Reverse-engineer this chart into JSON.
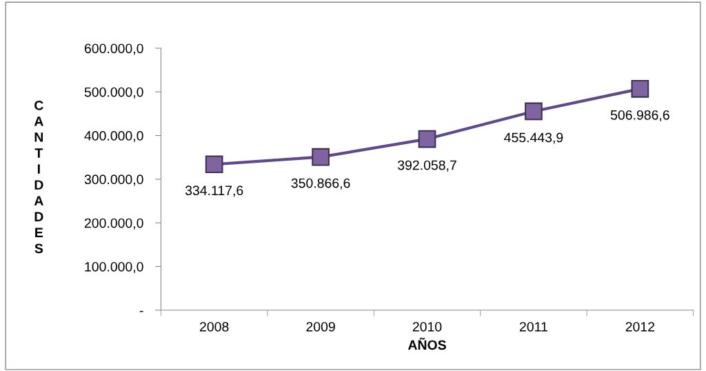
{
  "chart_data": {
    "type": "line",
    "xlabel": "AÑOS",
    "ylabel": "CANTIDADES",
    "categories": [
      "2008",
      "2009",
      "2010",
      "2011",
      "2012"
    ],
    "series": [
      {
        "color": "#5e4a8a",
        "values": [
          334117.6,
          350866.6,
          392058.7,
          455443.9,
          506986.6
        ],
        "value_labels": [
          "334.117,6",
          "350.866,6",
          "392.058,7",
          "455.443,9",
          "506.986,6"
        ]
      }
    ],
    "marker": "square",
    "line_style": "solid",
    "grid": false,
    "legend": false,
    "ylim": [
      0,
      600000
    ],
    "yticks": [
      {
        "value": 0,
        "label": "-"
      },
      {
        "value": 100000,
        "label": "100.000,0"
      },
      {
        "value": 200000,
        "label": "200.000,0"
      },
      {
        "value": 300000,
        "label": "300.000,0"
      },
      {
        "value": 400000,
        "label": "400.000,0"
      },
      {
        "value": 500000,
        "label": "500.000,0"
      },
      {
        "value": 600000,
        "label": "600.000,0"
      }
    ]
  }
}
